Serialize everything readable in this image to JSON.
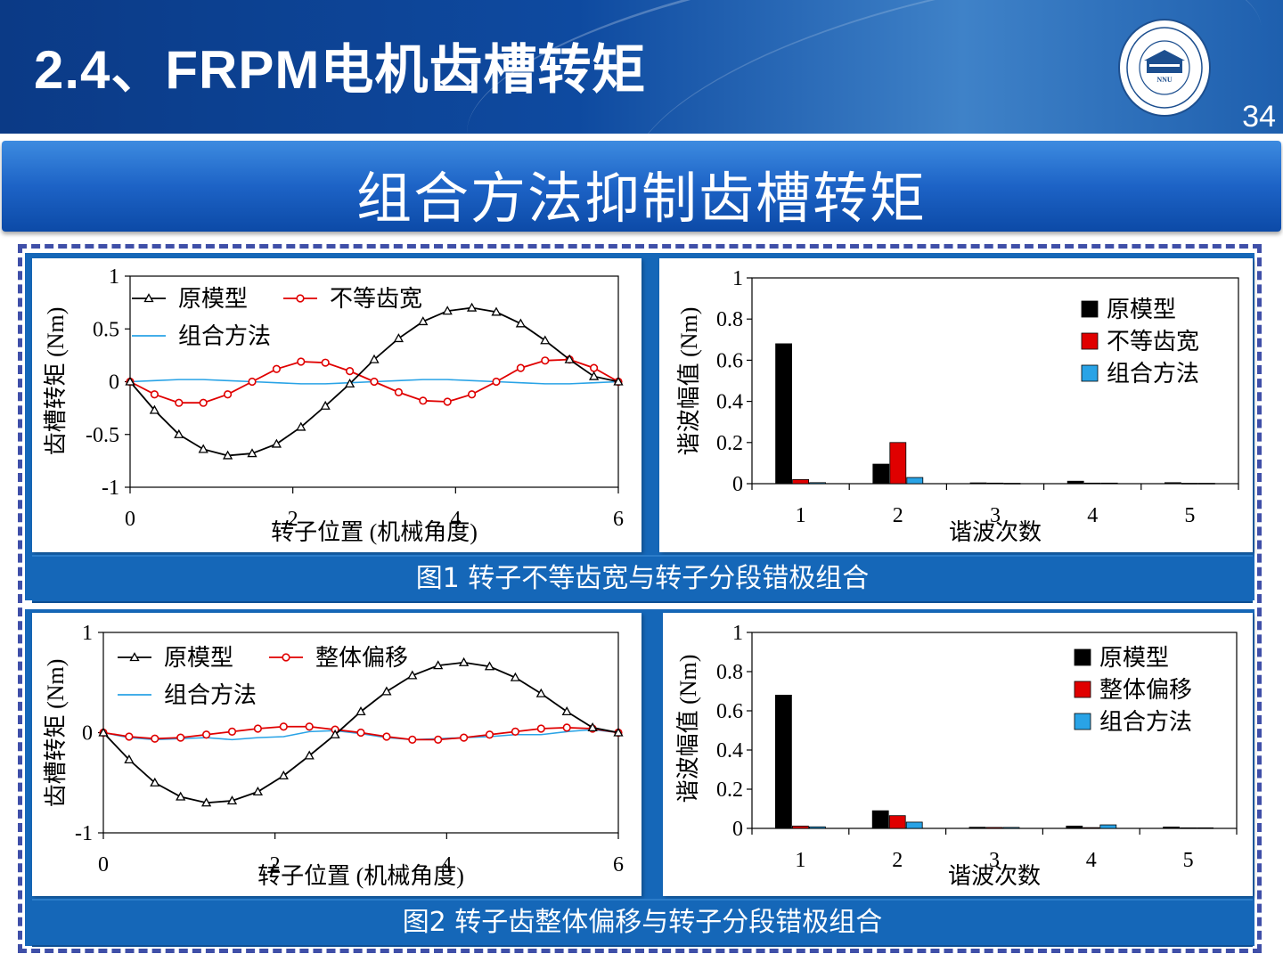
{
  "header": {
    "title": "2.4、FRPM电机齿槽转矩",
    "page_number": "34",
    "logo": {
      "text_top": "南京师范大学",
      "year": "1902",
      "abbr": "NNU",
      "text_bottom": "NANJING NORMAL UNIVERSITY"
    }
  },
  "banner": {
    "title": "组合方法抑制齿槽转矩"
  },
  "figures": [
    {
      "caption": "图1 转子不等齿宽与转子分段错极组合"
    },
    {
      "caption": "图2 转子齿整体偏移与转子分段错极组合"
    }
  ],
  "colors": {
    "original": "#000000",
    "variant": "#e00000",
    "combined": "#29a3e6",
    "caption_bg": "#1567b8"
  },
  "chart_data": [
    {
      "id": "fig1-waveform",
      "type": "line",
      "xlabel": "转子位置 (机械角度)",
      "ylabel": "齿槽转矩 (Nm)",
      "xlim": [
        0,
        6
      ],
      "ylim": [
        -1,
        1
      ],
      "xticks": [
        0,
        2,
        4,
        6
      ],
      "yticks": [
        1,
        0.5,
        0,
        -0.5,
        -1
      ],
      "legend_placement": "top-left",
      "x": [
        0,
        0.3,
        0.6,
        0.9,
        1.2,
        1.5,
        1.8,
        2.1,
        2.4,
        2.7,
        3.0,
        3.3,
        3.6,
        3.9,
        4.2,
        4.5,
        4.8,
        5.1,
        5.4,
        5.7,
        6.0
      ],
      "series": [
        {
          "name": "原模型",
          "marker": "triangle",
          "color": "#000000",
          "values": [
            0,
            -0.27,
            -0.5,
            -0.64,
            -0.7,
            -0.68,
            -0.59,
            -0.43,
            -0.23,
            -0.02,
            0.21,
            0.41,
            0.57,
            0.67,
            0.7,
            0.66,
            0.55,
            0.39,
            0.21,
            0.05,
            0
          ]
        },
        {
          "name": "不等齿宽",
          "marker": "circle",
          "color": "#e00000",
          "values": [
            0,
            -0.12,
            -0.2,
            -0.2,
            -0.12,
            0,
            0.12,
            0.19,
            0.18,
            0.1,
            0,
            -0.1,
            -0.18,
            -0.19,
            -0.12,
            0,
            0.13,
            0.2,
            0.21,
            0.13,
            0
          ]
        },
        {
          "name": "组合方法",
          "marker": "none",
          "color": "#29a3e6",
          "values": [
            0,
            0.01,
            0.02,
            0.02,
            0.01,
            0,
            -0.01,
            -0.02,
            -0.02,
            -0.01,
            0,
            0.01,
            0.02,
            0.02,
            0.01,
            0,
            -0.01,
            -0.02,
            -0.02,
            -0.01,
            0
          ]
        }
      ]
    },
    {
      "id": "fig1-harmonics",
      "type": "bar",
      "xlabel": "谐波次数",
      "ylabel": "谐波幅值 (Nm)",
      "ylim": [
        0,
        1
      ],
      "yticks": [
        1,
        0.8,
        0.6,
        0.4,
        0.2,
        0
      ],
      "legend_placement": "top-right",
      "categories": [
        "1",
        "2",
        "3",
        "4",
        "5"
      ],
      "series": [
        {
          "name": "原模型",
          "color": "#000000",
          "values": [
            0.68,
            0.095,
            0.004,
            0.012,
            0.005
          ]
        },
        {
          "name": "不等齿宽",
          "color": "#e00000",
          "values": [
            0.02,
            0.2,
            0.003,
            0.003,
            0.002
          ]
        },
        {
          "name": "组合方法",
          "color": "#29a3e6",
          "values": [
            0.005,
            0.03,
            0.002,
            0.003,
            0.002
          ]
        }
      ]
    },
    {
      "id": "fig2-waveform",
      "type": "line",
      "xlabel": "转子位置 (机械角度)",
      "ylabel": "齿槽转矩 (Nm)",
      "xlim": [
        0,
        6
      ],
      "ylim": [
        -1,
        1
      ],
      "xticks": [
        0,
        2,
        4,
        6
      ],
      "yticks": [
        1,
        0,
        -1
      ],
      "legend_placement": "top-left",
      "x": [
        0,
        0.3,
        0.6,
        0.9,
        1.2,
        1.5,
        1.8,
        2.1,
        2.4,
        2.7,
        3.0,
        3.3,
        3.6,
        3.9,
        4.2,
        4.5,
        4.8,
        5.1,
        5.4,
        5.7,
        6.0
      ],
      "series": [
        {
          "name": "原模型",
          "marker": "triangle",
          "color": "#000000",
          "values": [
            0,
            -0.27,
            -0.5,
            -0.64,
            -0.7,
            -0.68,
            -0.59,
            -0.43,
            -0.23,
            -0.02,
            0.21,
            0.41,
            0.57,
            0.67,
            0.7,
            0.66,
            0.55,
            0.39,
            0.21,
            0.05,
            0
          ]
        },
        {
          "name": "整体偏移",
          "marker": "circle",
          "color": "#e00000",
          "values": [
            0,
            -0.04,
            -0.06,
            -0.05,
            -0.02,
            0.01,
            0.04,
            0.06,
            0.06,
            0.03,
            0,
            -0.04,
            -0.07,
            -0.07,
            -0.05,
            -0.02,
            0.01,
            0.04,
            0.05,
            0.04,
            0
          ]
        },
        {
          "name": "组合方法",
          "marker": "none",
          "color": "#29a3e6",
          "values": [
            0,
            -0.05,
            -0.07,
            -0.06,
            -0.05,
            -0.07,
            -0.05,
            -0.04,
            0.01,
            0.02,
            -0.01,
            -0.05,
            -0.07,
            -0.06,
            -0.05,
            -0.04,
            -0.02,
            -0.02,
            0.01,
            0.03,
            0
          ]
        }
      ]
    },
    {
      "id": "fig2-harmonics",
      "type": "bar",
      "xlabel": "谐波次数",
      "ylabel": "谐波幅值 (Nm)",
      "ylim": [
        0,
        1
      ],
      "yticks": [
        1,
        0.8,
        0.6,
        0.4,
        0.2,
        0
      ],
      "legend_placement": "top-right",
      "categories": [
        "1",
        "2",
        "3",
        "4",
        "5"
      ],
      "series": [
        {
          "name": "原模型",
          "color": "#000000",
          "values": [
            0.68,
            0.09,
            0.006,
            0.012,
            0.007
          ]
        },
        {
          "name": "整体偏移",
          "color": "#e00000",
          "values": [
            0.012,
            0.065,
            0.005,
            0.004,
            0.003
          ]
        },
        {
          "name": "组合方法",
          "color": "#29a3e6",
          "values": [
            0.008,
            0.032,
            0.005,
            0.018,
            0.003
          ]
        }
      ]
    }
  ]
}
